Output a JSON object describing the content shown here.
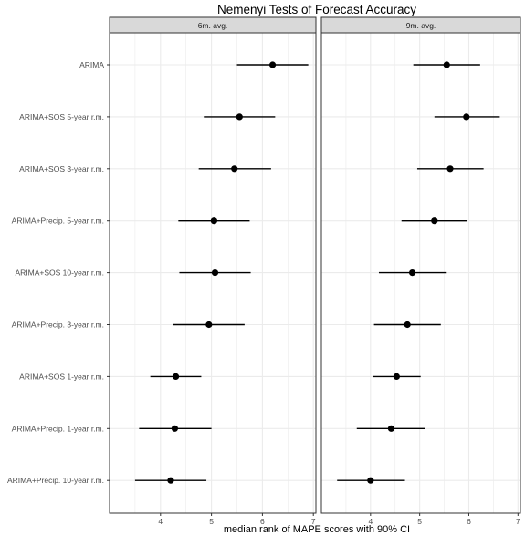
{
  "chart_data": {
    "type": "scatter",
    "title": "Nemenyi Tests of Forecast Accuracy",
    "xlabel": "median rank of MAPE scores with 90% CI",
    "ylabel": "",
    "xlim": [
      3.0,
      7.05
    ],
    "x_ticks": [
      "4",
      "5",
      "6",
      "7"
    ],
    "categories": [
      "ARIMA",
      "ARIMA+SOS 5-year r.m.",
      "ARIMA+SOS 3-year r.m.",
      "ARIMA+Precip. 5-year r.m.",
      "ARIMA+SOS 10-year r.m.",
      "ARIMA+Precip. 3-year r.m.",
      "ARIMA+SOS 1-year r.m.",
      "ARIMA+Precip. 1-year r.m.",
      "ARIMA+Precip. 10-year r.m."
    ],
    "grid": true,
    "legend": "none",
    "colors": {
      "point": "#000000",
      "panel_border": "#333333",
      "grid": "#ebebeb",
      "strip_fill": "#d9d9d9"
    },
    "panels": [
      {
        "label": "6m. avg.",
        "medians": [
          6.2,
          5.55,
          5.45,
          5.05,
          5.07,
          4.95,
          4.3,
          4.28,
          4.2
        ],
        "lower": [
          5.5,
          4.85,
          4.75,
          4.35,
          4.37,
          4.25,
          3.8,
          3.58,
          3.5
        ],
        "upper": [
          6.9,
          6.25,
          6.17,
          5.75,
          5.77,
          5.65,
          4.8,
          5.0,
          4.9
        ]
      },
      {
        "label": "9m. avg.",
        "medians": [
          5.55,
          5.95,
          5.62,
          5.3,
          4.85,
          4.75,
          4.53,
          4.42,
          4.0
        ],
        "lower": [
          4.87,
          5.3,
          4.95,
          4.63,
          4.17,
          4.07,
          4.05,
          3.72,
          3.32
        ],
        "upper": [
          6.23,
          6.63,
          6.3,
          5.97,
          5.55,
          5.43,
          5.02,
          5.1,
          4.7
        ]
      }
    ]
  }
}
